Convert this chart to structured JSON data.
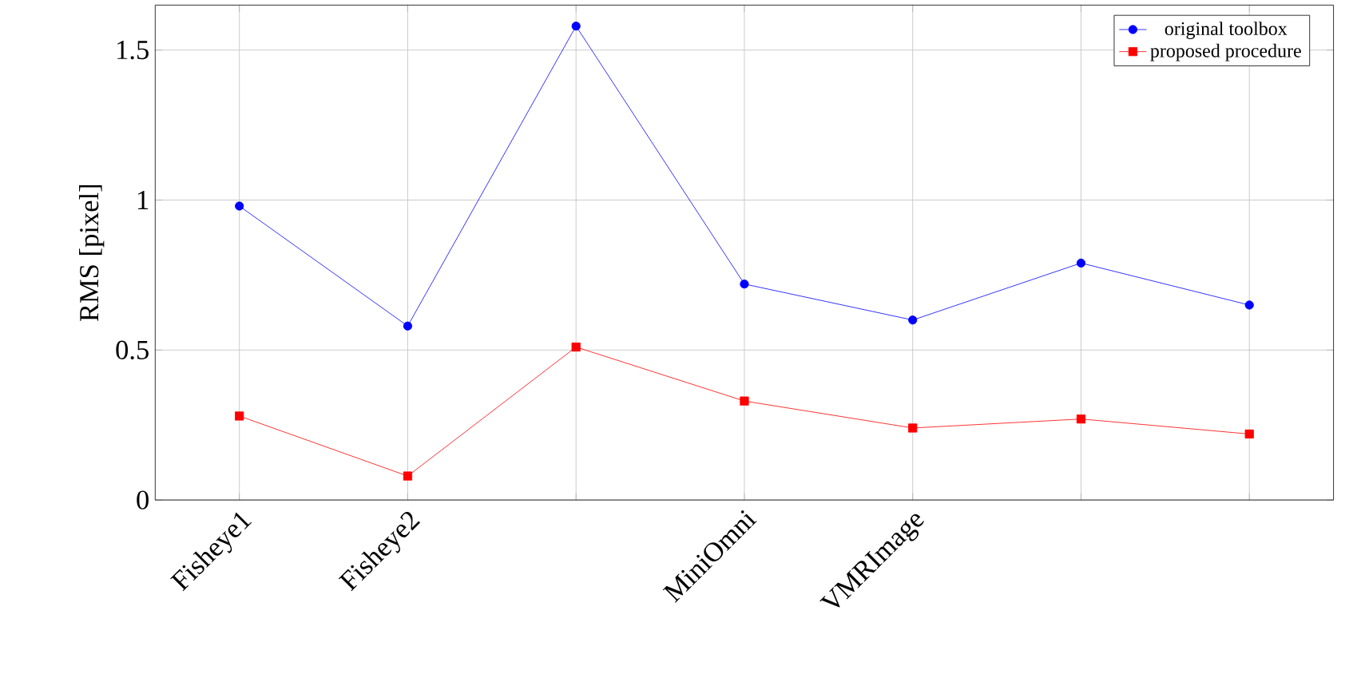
{
  "chart_data": {
    "type": "line",
    "ylabel": "RMS [pixel]",
    "categories": [
      "Fisheye1",
      "Fisheye2",
      null,
      "MiniOmni",
      "VMRImage",
      null,
      null
    ],
    "series": [
      {
        "name": "original toolbox",
        "color": "#0000ff",
        "marker": "circle",
        "values": [
          0.98,
          0.58,
          1.58,
          0.72,
          0.6,
          0.79,
          0.65
        ]
      },
      {
        "name": "proposed procedure",
        "color": "#ff0000",
        "marker": "square",
        "values": [
          0.28,
          0.08,
          0.51,
          0.33,
          0.24,
          0.27,
          0.22
        ]
      }
    ],
    "ylim": [
      0,
      1.65
    ],
    "yticks": [
      0,
      0.5,
      1,
      1.5
    ],
    "grid": true,
    "legend": "top right"
  }
}
